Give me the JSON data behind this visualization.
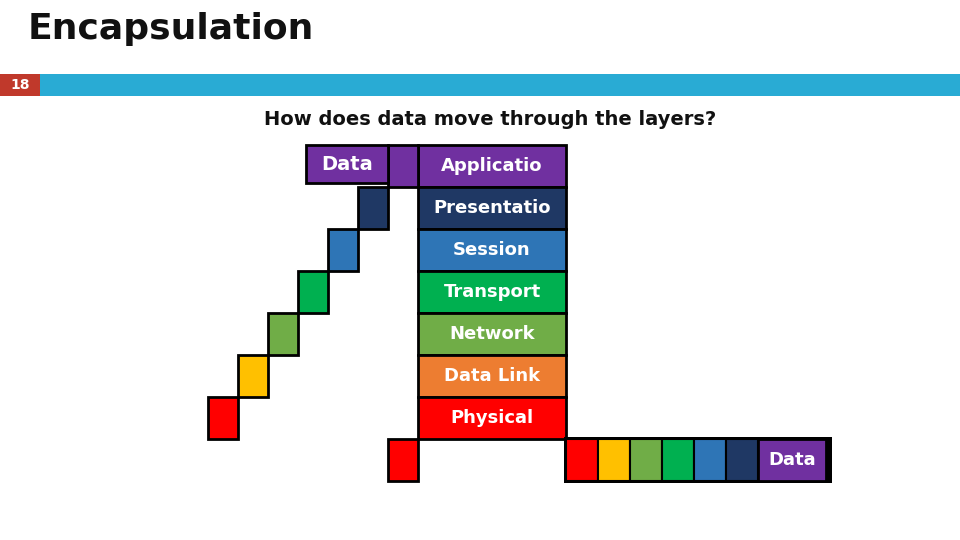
{
  "title": "Encapsulation",
  "subtitle": "How does data move through the layers?",
  "slide_number": "18",
  "background_color": "#ffffff",
  "header_bar_color": "#29ABD4",
  "slide_num_bg": "#C0392B",
  "layers": [
    {
      "name": "Applicatio",
      "color": "#7030A0"
    },
    {
      "name": "Presentatio",
      "color": "#1F3864"
    },
    {
      "name": "Session",
      "color": "#2E75B6"
    },
    {
      "name": "Transport",
      "color": "#00B050"
    },
    {
      "name": "Network",
      "color": "#70AD47"
    },
    {
      "name": "Data Link",
      "color": "#ED7D31"
    },
    {
      "name": "Physical",
      "color": "#FF0000"
    }
  ],
  "stair_colors": [
    "#7030A0",
    "#1F3864",
    "#2E75B6",
    "#00B050",
    "#70AD47",
    "#FFC000",
    "#FF0000"
  ],
  "bottom_strip_colors": [
    "#FF0000",
    "#FFC000",
    "#70AD47",
    "#00B050",
    "#2E75B6",
    "#1F3864"
  ],
  "title_fontsize": 26,
  "subtitle_fontsize": 14,
  "layer_fontsize": 13
}
